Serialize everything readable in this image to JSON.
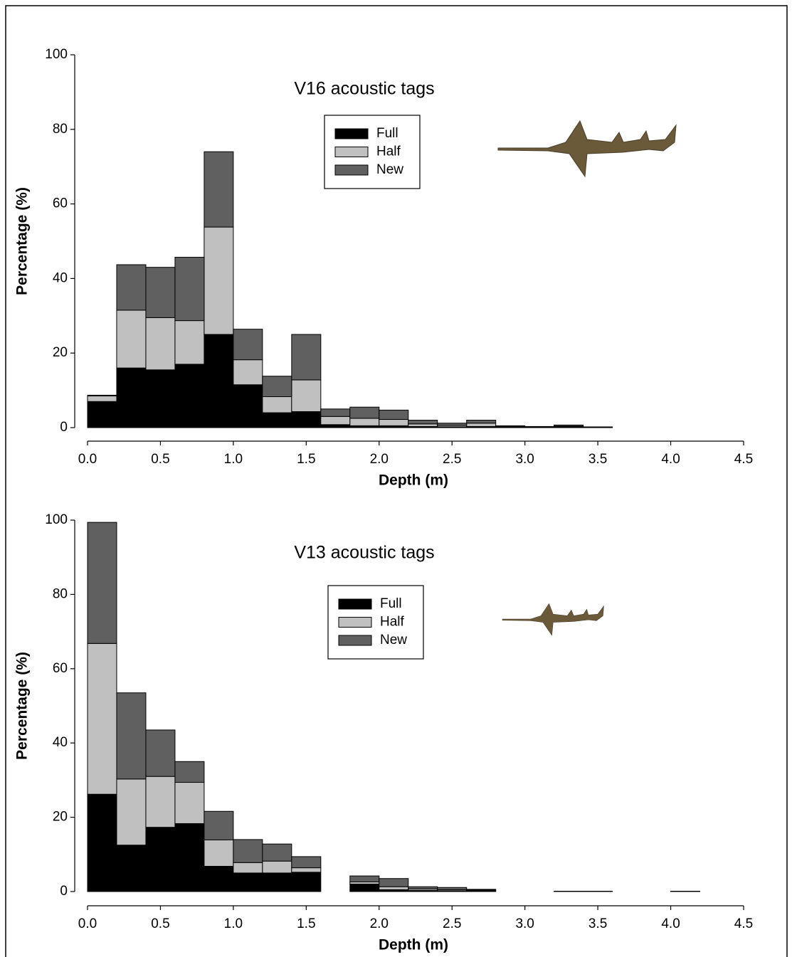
{
  "chart_data": [
    {
      "type": "histogram",
      "title": "V16 acoustic tags",
      "xlabel": "Depth (m)",
      "ylabel": "Percentage (%)",
      "bins": [
        0,
        0.2,
        0.4,
        0.6,
        0.8,
        1.0,
        1.2,
        1.4,
        1.6,
        1.8,
        2.0,
        2.2,
        2.4,
        2.6,
        2.8,
        3.0,
        3.2,
        3.4,
        3.6
      ],
      "stacked": true,
      "legend": "upper center",
      "series": [
        {
          "name": "Full",
          "color": "#000000",
          "values": [
            7,
            16,
            15.5,
            17,
            25,
            11.5,
            4,
            4.3,
            0.8,
            0.5,
            0.5,
            0.3,
            0.2,
            0.3,
            0.2,
            0.1,
            0.2,
            0.1
          ]
        },
        {
          "name": "Half",
          "color": "#c0c0c0",
          "values": [
            1.5,
            15.5,
            14,
            11.7,
            28.8,
            6.7,
            4.3,
            8.5,
            2.2,
            2,
            1.7,
            0.7,
            0.4,
            0.9,
            0.1,
            0.1,
            0.2,
            0
          ]
        },
        {
          "name": "New",
          "color": "#606060",
          "values": [
            0.2,
            12.2,
            13.5,
            17,
            20.2,
            8.2,
            5.5,
            12.2,
            2,
            3,
            2.5,
            1,
            0.6,
            0.8,
            0.2,
            0.1,
            0.3,
            0.1
          ]
        }
      ],
      "xlim": [
        0,
        4.5
      ],
      "xticks": [
        {
          "value": 0,
          "label": "0.0"
        },
        0.5,
        {
          "value": 1,
          "label": "1.0"
        },
        1.5,
        {
          "value": 2,
          "label": "2.0"
        },
        2.5,
        {
          "value": 3,
          "label": "3.0"
        },
        3.5,
        {
          "value": 4,
          "label": "4.0"
        },
        4.5
      ],
      "ylim": [
        0,
        100
      ],
      "yticks": [
        0,
        20,
        40,
        60,
        80,
        100
      ]
    },
    {
      "type": "histogram",
      "title": "V13 acoustic tags",
      "xlabel": "Depth (m)",
      "ylabel": "Percentage (%)",
      "bins": [
        0,
        0.2,
        0.4,
        0.6,
        0.8,
        1.0,
        1.2,
        1.4,
        1.6,
        1.8,
        2.0,
        2.2,
        2.4,
        2.6,
        2.8,
        3.0,
        3.2,
        3.4,
        3.6,
        3.8,
        4.0,
        4.2
      ],
      "stacked": true,
      "legend": "upper center",
      "series": [
        {
          "name": "Full",
          "color": "#000000",
          "values": [
            26.2,
            12.5,
            17.3,
            18.3,
            6.8,
            5,
            5,
            5.2,
            0,
            2,
            0.5,
            0.3,
            0.2,
            0.2,
            0,
            0,
            0.1,
            0.1,
            0,
            0,
            0.1
          ]
        },
        {
          "name": "Half",
          "color": "#c0c0c0",
          "values": [
            40.6,
            17.8,
            13.7,
            11.1,
            7.1,
            2.8,
            3.2,
            1.2,
            0,
            0.6,
            0.8,
            0.4,
            0.3,
            0.2,
            0,
            0,
            0,
            0,
            0,
            0,
            0
          ]
        },
        {
          "name": "New",
          "color": "#606060",
          "values": [
            32.6,
            23.2,
            12.5,
            5.6,
            7.7,
            6.2,
            4.6,
            3,
            0,
            1.6,
            2.2,
            0.6,
            0.6,
            0.2,
            0,
            0,
            0,
            0,
            0,
            0,
            0
          ]
        }
      ],
      "xlim": [
        0,
        4.5
      ],
      "xticks": [
        {
          "value": 0,
          "label": "0.0"
        },
        0.5,
        {
          "value": 1,
          "label": "1.0"
        },
        1.5,
        {
          "value": 2,
          "label": "2.0"
        },
        2.5,
        {
          "value": 3,
          "label": "3.0"
        },
        3.5,
        {
          "value": 4,
          "label": "4.0"
        },
        4.5
      ],
      "ylim": [
        0,
        100
      ],
      "yticks": [
        0,
        20,
        40,
        60,
        80,
        100
      ]
    }
  ]
}
